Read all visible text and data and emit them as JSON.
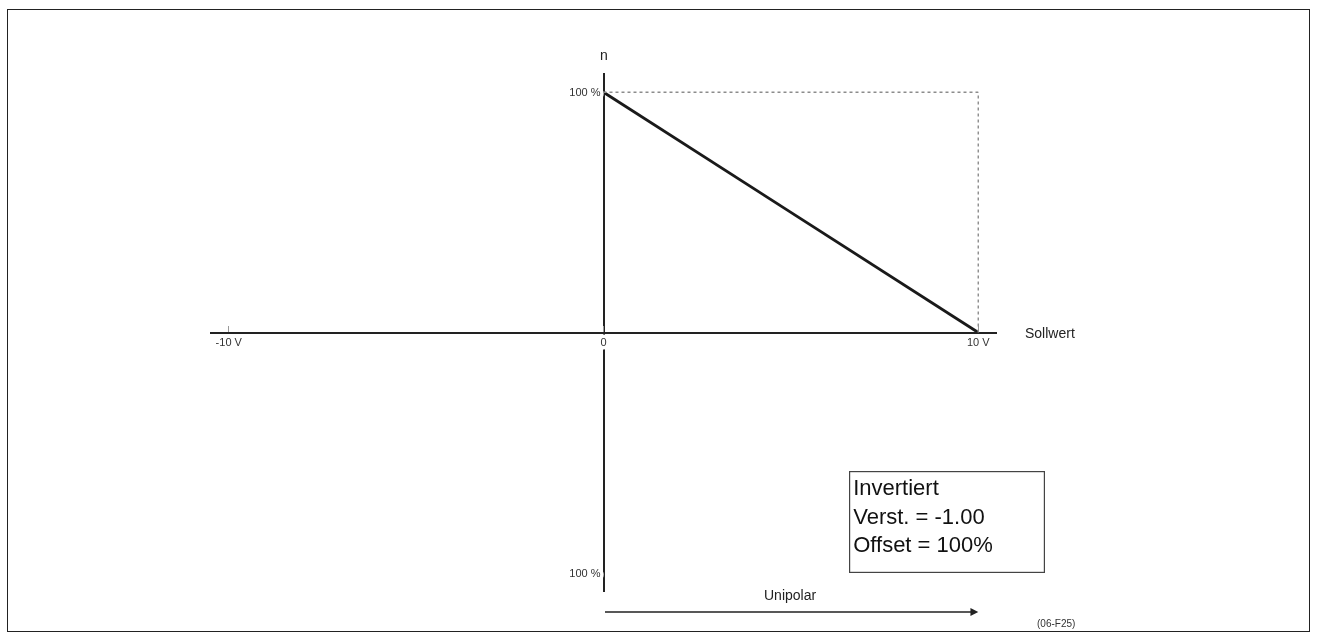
{
  "chart_data": {
    "type": "line",
    "xlabel": "Sollwert",
    "ylabel": "n",
    "line_style": "solid",
    "annotations": [
      "Invertiert\nVerst. = -1.00\nOffset = 100%",
      "Unipolar",
      "(06-F25)"
    ],
    "x": [
      0,
      10
    ],
    "values": [
      100,
      0
    ],
    "color": "#1a1a1a",
    "ref_lines": [
      {
        "axis": "y",
        "value": 100,
        "color": "#8c8c8c",
        "line_style": "dotted"
      },
      {
        "axis": "x",
        "value": 10,
        "color": "#8c8c8c",
        "line_style": "dotted"
      }
    ],
    "xlim": [
      -10.5,
      10.5
    ],
    "xticks": [
      {
        "value": -10,
        "label": "-10 V"
      },
      0,
      {
        "value": 10,
        "label": "10 V"
      }
    ],
    "ylim": [
      -108,
      108
    ],
    "yticks": [
      {
        "value": -100,
        "label": "100 %"
      },
      {
        "value": 100,
        "label": "100 %"
      }
    ]
  }
}
